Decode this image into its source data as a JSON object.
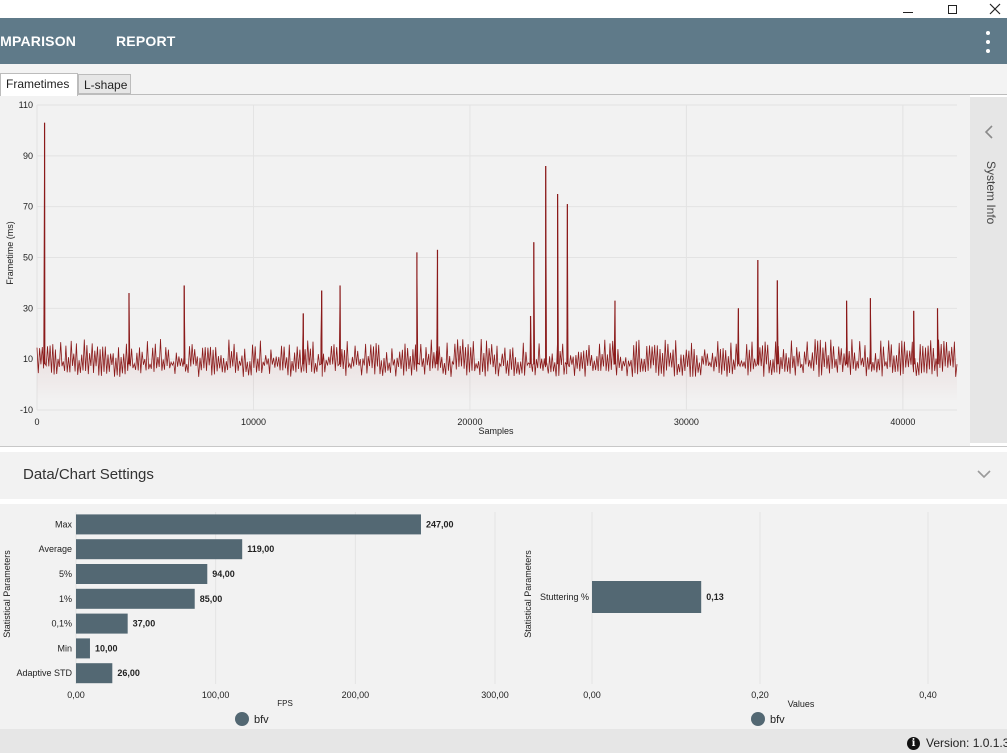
{
  "window": {
    "minimize_icon": "minimize-icon",
    "maximize_icon": "maximize-icon",
    "close_icon": "close-icon"
  },
  "appbar": {
    "items": [
      {
        "label": "OMPARISON"
      },
      {
        "label": "REPORT"
      }
    ],
    "menu_icon": "kebab-menu-icon"
  },
  "tabs": [
    {
      "label": "Frametimes",
      "active": true
    },
    {
      "label": "L-shape",
      "active": false
    }
  ],
  "system_info": {
    "label": "System Info",
    "icon": "chevron-left-icon"
  },
  "settings": {
    "title": "Data/Chart Settings",
    "icon": "chevron-down-icon"
  },
  "chart_data": [
    {
      "type": "line",
      "title": "",
      "xlabel": "Samples",
      "ylabel": "Frametime (ms)",
      "xlim": [
        0,
        42500
      ],
      "ylim": [
        -10,
        110
      ],
      "x_ticks": [
        "0",
        "10000",
        "20000",
        "30000",
        "40000"
      ],
      "y_ticks": [
        "110",
        "90",
        "70",
        "50",
        "30",
        "10",
        "-10"
      ],
      "x_tick_values": [
        0,
        10000,
        20000,
        30000,
        40000
      ],
      "y_tick_values": [
        110,
        90,
        70,
        50,
        30,
        10,
        -10
      ],
      "grid": true,
      "series": [
        {
          "name": "bfv",
          "color": "#8b1a1a",
          "baseline_ms": 8,
          "noise_range_ms": [
            3,
            18
          ],
          "spikes": [
            {
              "x": 350,
              "y": 103
            },
            {
              "x": 4250,
              "y": 36
            },
            {
              "x": 6800,
              "y": 39
            },
            {
              "x": 12300,
              "y": 28
            },
            {
              "x": 13150,
              "y": 37
            },
            {
              "x": 14000,
              "y": 39
            },
            {
              "x": 17550,
              "y": 52
            },
            {
              "x": 18500,
              "y": 53
            },
            {
              "x": 22800,
              "y": 27
            },
            {
              "x": 22950,
              "y": 56
            },
            {
              "x": 23500,
              "y": 86
            },
            {
              "x": 24050,
              "y": 75
            },
            {
              "x": 24500,
              "y": 71
            },
            {
              "x": 26700,
              "y": 33
            },
            {
              "x": 32400,
              "y": 30
            },
            {
              "x": 33300,
              "y": 49
            },
            {
              "x": 34200,
              "y": 41
            },
            {
              "x": 37400,
              "y": 33
            },
            {
              "x": 38500,
              "y": 34
            },
            {
              "x": 40500,
              "y": 29
            },
            {
              "x": 41600,
              "y": 30
            }
          ]
        }
      ]
    },
    {
      "type": "bar",
      "orientation": "horizontal",
      "title": "",
      "xlabel": "FPS",
      "ylabel": "Statistical Parameters",
      "xlim": [
        0,
        300
      ],
      "x_ticks": [
        "0,00",
        "100,00",
        "200,00",
        "300,00"
      ],
      "x_tick_values": [
        0,
        100,
        200,
        300
      ],
      "categories": [
        "Max",
        "Average",
        "5%",
        "1%",
        "0,1%",
        "Min",
        "Adaptive STD"
      ],
      "values": [
        247,
        119,
        94,
        85,
        37,
        10,
        26
      ],
      "value_labels": [
        "247,00",
        "119,00",
        "94,00",
        "85,00",
        "37,00",
        "10,00",
        "26,00"
      ],
      "color": "#536873",
      "legend": [
        {
          "name": "bfv",
          "color": "#536873"
        }
      ]
    },
    {
      "type": "bar",
      "orientation": "horizontal",
      "title": "",
      "xlabel": "Values",
      "ylabel": "Statistical Parameters",
      "xlim": [
        0,
        0.4
      ],
      "x_ticks": [
        "0,00",
        "0,20",
        "0,40"
      ],
      "x_tick_values": [
        0,
        0.2,
        0.4
      ],
      "categories": [
        "Stuttering %"
      ],
      "values": [
        0.13
      ],
      "value_labels": [
        "0,13"
      ],
      "color": "#536873",
      "legend": [
        {
          "name": "bfv",
          "color": "#536873"
        }
      ]
    }
  ],
  "status": {
    "info_icon": "info-icon",
    "glyph": "i",
    "version_text": "Version: 1.0.1.3"
  }
}
